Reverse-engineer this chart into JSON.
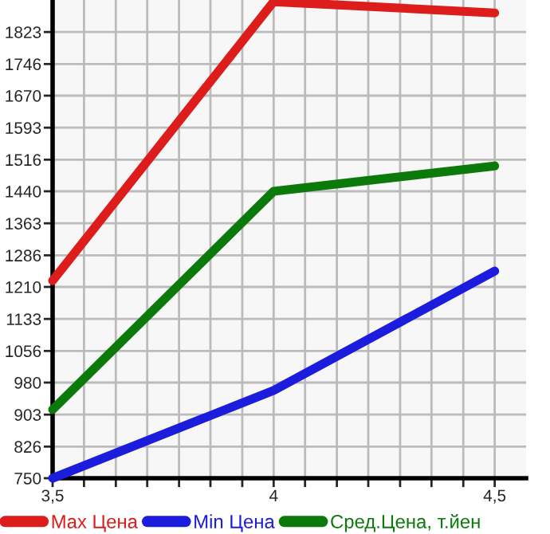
{
  "chart_data": {
    "type": "line",
    "x": [
      3.5,
      4,
      4.5
    ],
    "series": [
      {
        "name": "Max Цена",
        "color": "#dd1c1c",
        "values": [
          1225,
          1896,
          1869
        ]
      },
      {
        "name": "Min Цена",
        "color": "#1c1cdd",
        "values": [
          750,
          961,
          1248
        ]
      },
      {
        "name": "Сред.Цена, т.йен",
        "color": "#0b7a0b",
        "values": [
          915,
          1440,
          1501
        ]
      }
    ],
    "xlim": [
      3.5,
      4.571
    ],
    "xticks": [
      {
        "value": 3.5,
        "label": "3,5"
      },
      {
        "value": 3.571,
        "label": null
      },
      {
        "value": 3.643,
        "label": null
      },
      {
        "value": 3.714,
        "label": null
      },
      {
        "value": 3.786,
        "label": null
      },
      {
        "value": 3.857,
        "label": null
      },
      {
        "value": 3.929,
        "label": null
      },
      4,
      {
        "value": 4.071,
        "label": null
      },
      {
        "value": 4.143,
        "label": null
      },
      {
        "value": 4.214,
        "label": null
      },
      {
        "value": 4.286,
        "label": null
      },
      {
        "value": 4.357,
        "label": null
      },
      {
        "value": 4.429,
        "label": null
      },
      {
        "value": 4.5,
        "label": "4,5"
      }
    ],
    "ylim": [
      750,
      1900
    ],
    "yticks": [
      750,
      826,
      903,
      980,
      1056,
      1133,
      1210,
      1286,
      1363,
      1440,
      1516,
      1593,
      1670,
      1746,
      1823
    ],
    "grid": true,
    "legend": "bottom",
    "marker": "none",
    "line_style": "solid"
  }
}
